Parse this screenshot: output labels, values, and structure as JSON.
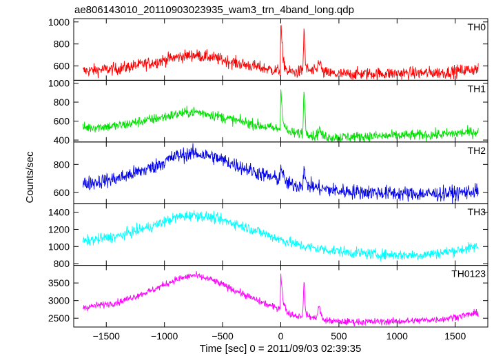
{
  "chart_data": {
    "type": "line",
    "title": "ae806143010_20110903023935_wam3_trn_4band_long.qdp",
    "xlabel": "Time [sec] 0 = 2011/09/03 02:39:35",
    "ylabel": "Counts/sec",
    "xlim": [
      -1780,
      1780
    ],
    "x_ticks": [
      -1500,
      -1000,
      -500,
      0,
      500,
      1000,
      1500
    ],
    "x_tick_labels": [
      "−1500",
      "−1000",
      "−500",
      "0",
      "500",
      "1000",
      "1500"
    ],
    "panels": [
      {
        "name": "TH0",
        "color": "#ff0000",
        "ylim": [
          470,
          1030
        ],
        "y_ticks": [
          600,
          800,
          1000
        ],
        "x": [
          -1700,
          -1400,
          -1100,
          -900,
          -750,
          -600,
          -400,
          -200,
          -50,
          -5,
          0,
          20,
          60,
          150,
          190,
          200,
          215,
          280,
          310,
          330,
          360,
          500,
          800,
          1100,
          1400,
          1700
        ],
        "y": [
          555,
          575,
          630,
          680,
          700,
          680,
          630,
          590,
          560,
          560,
          1000,
          640,
          545,
          545,
          560,
          960,
          575,
          545,
          560,
          660,
          540,
          525,
          530,
          535,
          540,
          575
        ],
        "noise": 40
      },
      {
        "name": "TH1",
        "color": "#00e000",
        "ylim": [
          380,
          1030
        ],
        "y_ticks": [
          400,
          600,
          800,
          1000
        ],
        "x": [
          -1700,
          -1400,
          -1100,
          -900,
          -750,
          -600,
          -400,
          -200,
          -50,
          -5,
          0,
          20,
          60,
          150,
          190,
          200,
          215,
          280,
          310,
          330,
          360,
          500,
          800,
          1100,
          1400,
          1700
        ],
        "y": [
          530,
          550,
          620,
          670,
          700,
          670,
          610,
          560,
          520,
          520,
          940,
          600,
          480,
          470,
          480,
          1000,
          500,
          440,
          450,
          520,
          440,
          430,
          440,
          450,
          460,
          490
        ],
        "noise": 40
      },
      {
        "name": "TH2",
        "color": "#0000ee",
        "ylim": [
          520,
          960
        ],
        "y_ticks": [
          600,
          800
        ],
        "x": [
          -1700,
          -1400,
          -1100,
          -900,
          -750,
          -600,
          -400,
          -200,
          -50,
          -5,
          0,
          20,
          60,
          150,
          190,
          200,
          215,
          280,
          330,
          500,
          800,
          1100,
          1400,
          1700
        ],
        "y": [
          660,
          700,
          780,
          860,
          880,
          860,
          800,
          740,
          700,
          700,
          810,
          710,
          660,
          650,
          660,
          800,
          660,
          640,
          630,
          610,
          600,
          590,
          590,
          610
        ],
        "noise": 38
      },
      {
        "name": "TH3",
        "color": "#00ffff",
        "ylim": [
          780,
          1500
        ],
        "y_ticks": [
          800,
          1000,
          1200,
          1400
        ],
        "x": [
          -1700,
          -1400,
          -1100,
          -900,
          -750,
          -600,
          -400,
          -200,
          0,
          200,
          400,
          600,
          800,
          1000,
          1200,
          1400,
          1700
        ],
        "y": [
          1060,
          1120,
          1240,
          1340,
          1370,
          1340,
          1270,
          1180,
          1080,
          1000,
          960,
          930,
          910,
          900,
          900,
          930,
          1000
        ],
        "noise": 45
      },
      {
        "name": "TH0123",
        "color": "#ff00ff",
        "ylim": [
          2250,
          4000
        ],
        "y_ticks": [
          2500,
          3000,
          3500
        ],
        "x": [
          -1700,
          -1400,
          -1100,
          -900,
          -750,
          -600,
          -400,
          -200,
          -50,
          -5,
          0,
          20,
          60,
          150,
          190,
          200,
          215,
          280,
          310,
          330,
          360,
          500,
          800,
          1100,
          1400,
          1700
        ],
        "y": [
          2800,
          2950,
          3300,
          3600,
          3720,
          3600,
          3300,
          3000,
          2800,
          2800,
          3800,
          2950,
          2650,
          2550,
          2600,
          3650,
          2600,
          2500,
          2550,
          2850,
          2450,
          2400,
          2400,
          2420,
          2480,
          2650
        ],
        "noise": 70
      }
    ]
  }
}
